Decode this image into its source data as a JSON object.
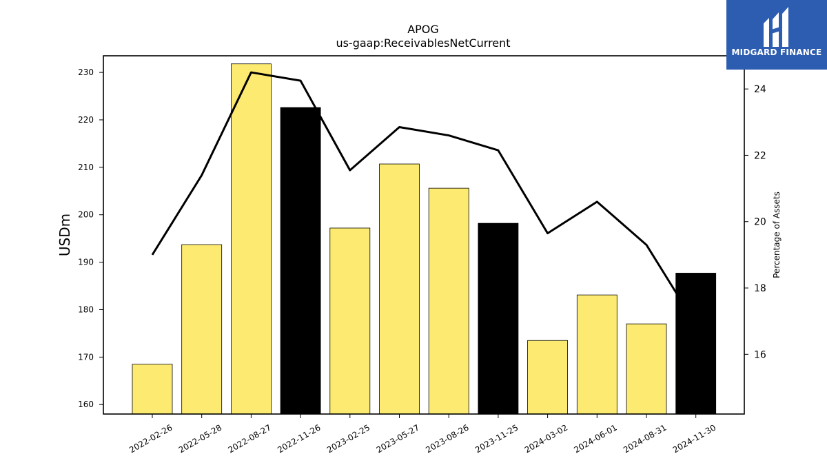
{
  "chart_data": {
    "type": "bar",
    "title": "APOG",
    "subtitle": "us-gaap:ReceivablesNetCurrent",
    "ylabel": "USDm",
    "y2label": "Percentage of Assets",
    "ylim": [
      158,
      233.5
    ],
    "y2lim": [
      14.2,
      25
    ],
    "yticks": [
      160,
      170,
      180,
      190,
      200,
      210,
      220,
      230
    ],
    "y2ticks": [
      16,
      18,
      20,
      22,
      24
    ],
    "categories": [
      "2022-02-26",
      "2022-05-28",
      "2022-08-27",
      "2022-11-26",
      "2023-02-25",
      "2023-05-27",
      "2023-08-26",
      "2023-11-25",
      "2024-03-02",
      "2024-06-01",
      "2024-08-31",
      "2024-11-30"
    ],
    "series": [
      {
        "type": "bar",
        "axis": "left",
        "values": [
          168.5,
          193.7,
          231.8,
          222.6,
          197.2,
          210.7,
          205.6,
          198.2,
          173.5,
          183.1,
          177.0,
          187.7
        ],
        "colors": [
          "#fdeb71",
          "#fdeb71",
          "#fdeb71",
          "#000000",
          "#fdeb71",
          "#fdeb71",
          "#fdeb71",
          "#000000",
          "#fdeb71",
          "#fdeb71",
          "#fdeb71",
          "#000000"
        ]
      },
      {
        "type": "line",
        "axis": "right",
        "color": "#000000",
        "values": [
          19.0,
          21.4,
          24.5,
          24.25,
          21.55,
          22.85,
          22.6,
          22.15,
          19.65,
          20.6,
          19.3,
          16.9
        ]
      }
    ],
    "grid": false
  },
  "logo": {
    "text": "MIDGARD FINANCE",
    "bg_color": "#2d5db0"
  }
}
